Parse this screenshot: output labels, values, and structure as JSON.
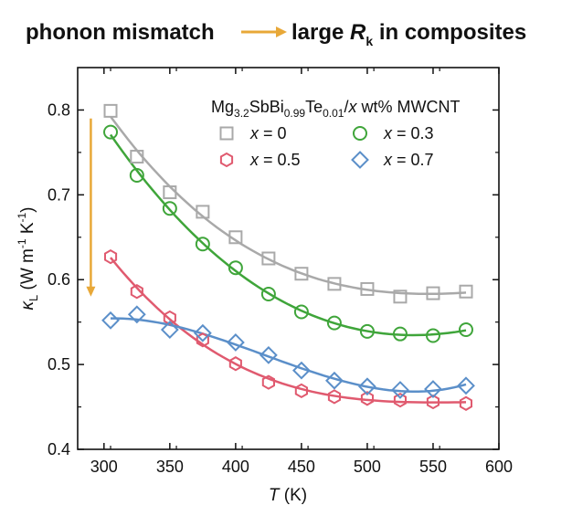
{
  "header": {
    "left_text": "phonon  mismatch",
    "right_text_prefix": "large ",
    "right_symbol": "R",
    "right_subscript": "k",
    "right_text_suffix": " in composites",
    "arrow_color": "#E8A838"
  },
  "chart_data": {
    "type": "scatter",
    "x_axis": {
      "label_symbol": "T",
      "label_unit": " (K)",
      "range": [
        280,
        600
      ],
      "ticks": [
        300,
        350,
        400,
        450,
        500,
        550,
        600
      ],
      "tick_labels": [
        "300",
        "350",
        "400",
        "450",
        "500",
        "550",
        "600"
      ]
    },
    "y_axis": {
      "label_symbol": "κ",
      "label_subscript": "L",
      "label_unit_open": " (W m",
      "label_sup1": "-1",
      "label_unit_mid": " K",
      "label_sup2": "-1",
      "label_unit_close": ")",
      "range": [
        0.4,
        0.85
      ],
      "ticks": [
        0.4,
        0.5,
        0.6,
        0.7,
        0.8
      ],
      "tick_labels": [
        "0.4",
        "0.5",
        "0.6",
        "0.7",
        "0.8"
      ]
    },
    "legend": {
      "position": "top-right",
      "formula_parts": [
        "Mg",
        "3.2",
        "SbBi",
        "0.99",
        "Te",
        "0.01",
        "/",
        "x",
        " wt% MWCNT"
      ]
    },
    "series": [
      {
        "name": "x = 0",
        "label_var": "x",
        "label_rest": " = 0",
        "marker": "square",
        "color": "#A9A9A9",
        "x": [
          305,
          325,
          350,
          375,
          400,
          425,
          450,
          475,
          500,
          525,
          550,
          575
        ],
        "y": [
          0.799,
          0.745,
          0.703,
          0.68,
          0.65,
          0.625,
          0.607,
          0.595,
          0.589,
          0.58,
          0.584,
          0.586
        ]
      },
      {
        "name": "x = 0.3",
        "label_var": "x",
        "label_rest": " = 0.3",
        "marker": "circle",
        "color": "#3FA53A",
        "x": [
          305,
          325,
          350,
          375,
          400,
          425,
          450,
          475,
          500,
          525,
          550,
          575
        ],
        "y": [
          0.774,
          0.723,
          0.684,
          0.642,
          0.614,
          0.583,
          0.562,
          0.549,
          0.539,
          0.536,
          0.534,
          0.541
        ]
      },
      {
        "name": "x = 0.5",
        "label_var": "x",
        "label_rest": " = 0.5",
        "marker": "hexagon",
        "color": "#E05A6F",
        "x": [
          305,
          325,
          350,
          375,
          400,
          425,
          450,
          475,
          500,
          525,
          550,
          575
        ],
        "y": [
          0.627,
          0.586,
          0.555,
          0.529,
          0.501,
          0.479,
          0.469,
          0.462,
          0.46,
          0.458,
          0.456,
          0.454
        ]
      },
      {
        "name": "x = 0.7",
        "label_var": "x",
        "label_rest": " = 0.7",
        "marker": "diamond",
        "color": "#5B8FC9",
        "x": [
          305,
          325,
          350,
          375,
          400,
          425,
          450,
          475,
          500,
          525,
          550,
          575
        ],
        "y": [
          0.552,
          0.559,
          0.541,
          0.537,
          0.526,
          0.511,
          0.493,
          0.481,
          0.474,
          0.47,
          0.471,
          0.475
        ]
      }
    ],
    "annotation_arrow": {
      "color": "#E8A838",
      "x": 290,
      "y_from": 0.79,
      "y_to": 0.58
    }
  }
}
